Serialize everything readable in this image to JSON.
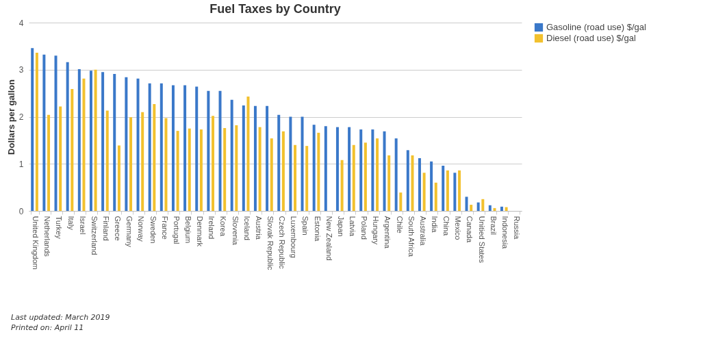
{
  "chart_data": {
    "type": "bar",
    "title": "Fuel Taxes by Country",
    "ylabel": "Dollars per gallon",
    "categories": [
      "United Kingdom",
      "Netherlands",
      "Turkey",
      "Italy",
      "Israel",
      "Switzerland",
      "Finland",
      "Greece",
      "Germany",
      "Norway",
      "Sweden",
      "France",
      "Portugal",
      "Belgium",
      "Denmark",
      "Ireland",
      "Korea",
      "Slovenia",
      "Iceland",
      "Austria",
      "Slovak Republic",
      "Czech Republic",
      "Luxembourg",
      "Spain",
      "Estonia",
      "New Zealand",
      "Japan",
      "Latvia",
      "Poland",
      "Hungary",
      "Argentina",
      "Chile",
      "South Africa",
      "Australia",
      "India",
      "China",
      "Mexico",
      "Canada",
      "Unitied States",
      "Brazil",
      "Indonesia",
      "Russia"
    ],
    "series": [
      {
        "name": "Gasoline (road use) $/gal",
        "color": "#3a78c9",
        "values": [
          3.46,
          3.32,
          3.3,
          3.16,
          3.01,
          2.98,
          2.95,
          2.91,
          2.84,
          2.81,
          2.71,
          2.71,
          2.67,
          2.67,
          2.64,
          2.55,
          2.55,
          2.36,
          2.24,
          2.23,
          2.23,
          2.04,
          2.0,
          2.0,
          1.83,
          1.8,
          1.78,
          1.78,
          1.73,
          1.73,
          1.69,
          1.54,
          1.29,
          1.12,
          1.05,
          0.96,
          0.81,
          0.3,
          0.18,
          0.12,
          0.09,
          null
        ]
      },
      {
        "name": "Diesel (road use) $/gal",
        "color": "#f2c12e",
        "values": [
          3.36,
          2.04,
          2.22,
          2.59,
          2.81,
          3.0,
          2.13,
          1.39,
          1.99,
          2.1,
          2.27,
          1.97,
          1.7,
          1.75,
          1.73,
          2.02,
          1.76,
          1.82,
          2.43,
          1.78,
          1.54,
          1.69,
          1.4,
          1.38,
          1.66,
          null,
          1.08,
          1.4,
          1.45,
          1.54,
          1.18,
          0.39,
          1.18,
          0.81,
          0.6,
          0.86,
          0.86,
          0.13,
          0.25,
          0.06,
          0.08,
          null
        ]
      }
    ],
    "ylim": [
      0,
      4
    ],
    "yticks": [
      0,
      1,
      2,
      3,
      4
    ],
    "grid": "y",
    "legend": "right",
    "annotations": [
      "Last updated: March 2019",
      "Printed on: April 11"
    ]
  }
}
